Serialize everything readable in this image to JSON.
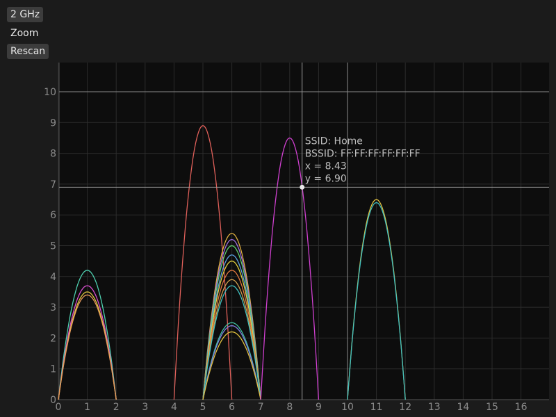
{
  "controls": {
    "band_label": "2 GHz",
    "zoom_label": "Zoom",
    "rescan_label": "Rescan"
  },
  "colors": {
    "background": "#1b1b1b",
    "plot_background": "#0d0d0d",
    "grid": "#2c2c2c",
    "axis_text": "#8c8c8c",
    "crosshair": "#9a9a9a"
  },
  "tooltip": {
    "ssid": "SSID: Home",
    "bssid": "BSSID: FF:FF:FF:FF:FF:FF",
    "x": "x = 8.43",
    "y": "y = 6.90"
  },
  "chart_data": {
    "type": "line",
    "title": "",
    "xlabel": "",
    "ylabel": "",
    "xlim": [
      0,
      17
    ],
    "ylim": [
      0,
      10.5
    ],
    "x_ticks": [
      0,
      1,
      2,
      3,
      4,
      5,
      6,
      7,
      8,
      9,
      10,
      11,
      12,
      13,
      14,
      15,
      16
    ],
    "y_ticks": [
      0,
      1,
      2,
      3,
      4,
      5,
      6,
      7,
      8,
      9,
      10
    ],
    "grid": true,
    "reference_lines": {
      "y": 10,
      "x": 10
    },
    "crosshair": {
      "x": 8.43,
      "y": 6.9
    },
    "series": [
      {
        "center": 1,
        "peak": 4.2,
        "color": "#4fd0b0"
      },
      {
        "center": 1,
        "peak": 3.7,
        "color": "#d94fd0"
      },
      {
        "center": 1,
        "peak": 3.5,
        "color": "#e0c640"
      },
      {
        "center": 1,
        "peak": 3.4,
        "color": "#e89a5a"
      },
      {
        "center": 5,
        "peak": 8.9,
        "color": "#e0605a"
      },
      {
        "center": 6,
        "peak": 5.4,
        "color": "#e0b040"
      },
      {
        "center": 6,
        "peak": 5.2,
        "color": "#a070e0"
      },
      {
        "center": 6,
        "peak": 5.0,
        "color": "#60d070"
      },
      {
        "center": 6,
        "peak": 4.7,
        "color": "#5aa0e0"
      },
      {
        "center": 6,
        "peak": 4.5,
        "color": "#e0d040"
      },
      {
        "center": 6,
        "peak": 4.2,
        "color": "#e07840"
      },
      {
        "center": 6,
        "peak": 3.9,
        "color": "#d0a050"
      },
      {
        "center": 6,
        "peak": 3.7,
        "color": "#40c0c0"
      },
      {
        "center": 6,
        "peak": 2.5,
        "color": "#40c0a0"
      },
      {
        "center": 6,
        "peak": 2.4,
        "color": "#8080e0"
      },
      {
        "center": 6,
        "peak": 2.2,
        "color": "#e0c040"
      },
      {
        "center": 8,
        "peak": 8.5,
        "color": "#d040d0"
      },
      {
        "center": 11,
        "peak": 6.5,
        "color": "#e0c040"
      },
      {
        "center": 11,
        "peak": 6.4,
        "color": "#40c0c0"
      }
    ]
  }
}
